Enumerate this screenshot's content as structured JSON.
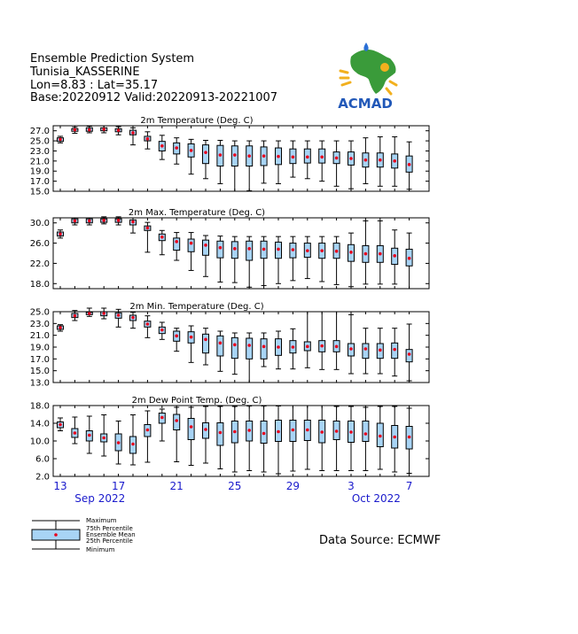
{
  "header": {
    "system": "Ensemble Prediction System",
    "location": "Tunisia_KASSERINE",
    "coords": "Lon=8.83 : Lat=35.17",
    "dates": "Base:20220912 Valid:20220913-20221007"
  },
  "logo": {
    "text": "ACMAD"
  },
  "source": "Data Source: ECMWF",
  "legend": {
    "items": [
      "Maximum",
      "75th Percentile",
      "Ensemble Mean",
      "25th Percentile",
      "Minimum"
    ]
  },
  "xaxis": {
    "day_labels": [
      "13",
      "17",
      "21",
      "25",
      "29",
      "3",
      "7"
    ],
    "day_label_index": [
      0,
      4,
      8,
      12,
      16,
      20,
      24
    ],
    "month_labels": [
      "Sep 2022",
      "Oct 2022"
    ],
    "month_label_index": [
      2,
      21
    ]
  },
  "colors": {
    "box": "#a8d4f5",
    "mean": "#e8001c",
    "tick_text": "#1a1acc",
    "frame": "#000000"
  },
  "chart_data": [
    {
      "type": "box",
      "title": "2m Temperature (Deg. C)",
      "ylim": [
        15,
        28
      ],
      "yticks": [
        "27.0",
        "25.0",
        "23.0",
        "21.0",
        "19.0",
        "17.0",
        "15.0"
      ],
      "ytick_values": [
        27,
        25,
        23,
        21,
        19,
        17,
        15
      ],
      "max": [
        25.9,
        27.7,
        27.9,
        28.0,
        27.8,
        27.6,
        26.8,
        26.1,
        25.6,
        25.3,
        25.1,
        25.1,
        25.0,
        25.0,
        25.0,
        25.0,
        25.0,
        25.0,
        25.0,
        25.0,
        25.0,
        25.6,
        25.8,
        25.8,
        24.8
      ],
      "q75": [
        25.6,
        27.4,
        27.6,
        27.6,
        27.4,
        27.1,
        25.9,
        24.9,
        24.6,
        24.4,
        24.2,
        24.1,
        24.0,
        24.0,
        23.8,
        23.6,
        23.4,
        23.4,
        23.4,
        22.8,
        22.8,
        22.6,
        22.6,
        22.4,
        22.0
      ],
      "mean": [
        25.3,
        27.2,
        27.2,
        27.3,
        27.1,
        26.6,
        25.4,
        24.0,
        23.6,
        23.1,
        22.7,
        22.2,
        22.2,
        22.0,
        22.0,
        21.9,
        21.8,
        21.8,
        21.8,
        21.6,
        21.5,
        21.2,
        21.2,
        21.0,
        20.3
      ],
      "q25": [
        24.9,
        26.9,
        26.9,
        27.0,
        26.8,
        26.2,
        25.0,
        23.0,
        22.4,
        21.8,
        20.5,
        20.0,
        20.0,
        20.0,
        20.1,
        20.3,
        20.5,
        20.6,
        20.6,
        20.5,
        20.2,
        19.8,
        19.8,
        19.6,
        18.8
      ],
      "min": [
        24.6,
        26.5,
        26.6,
        26.6,
        26.2,
        24.2,
        23.4,
        21.3,
        20.4,
        18.4,
        17.5,
        16.5,
        15.0,
        15.1,
        16.6,
        16.5,
        17.8,
        17.5,
        17.0,
        16.0,
        15.5,
        16.5,
        16.0,
        16.0,
        15.4
      ]
    },
    {
      "type": "box",
      "title": "2m Max. Temperature (Deg. C)",
      "ylim": [
        17,
        31
      ],
      "yticks": [
        "30.0",
        "26.0",
        "22.0",
        "18.0"
      ],
      "ytick_values": [
        30,
        26,
        22,
        18
      ],
      "max": [
        28.6,
        31.0,
        31.0,
        31.2,
        31.2,
        31.0,
        30.1,
        28.5,
        28.1,
        28.1,
        27.5,
        27.4,
        27.3,
        27.3,
        27.3,
        27.3,
        27.3,
        27.3,
        27.3,
        27.3,
        28.0,
        30.4,
        30.4,
        28.6,
        28.0
      ],
      "q75": [
        28.2,
        30.8,
        30.8,
        30.8,
        30.8,
        30.6,
        29.4,
        27.8,
        27.0,
        26.8,
        26.6,
        26.4,
        26.3,
        26.4,
        26.4,
        26.2,
        26.0,
        26.0,
        26.0,
        26.0,
        25.7,
        25.5,
        25.5,
        25.0,
        24.8
      ],
      "mean": [
        27.8,
        30.4,
        30.4,
        30.5,
        30.5,
        30.2,
        29.0,
        27.2,
        26.3,
        26.0,
        25.6,
        25.1,
        24.9,
        24.9,
        24.8,
        24.8,
        24.7,
        24.5,
        24.5,
        24.4,
        24.2,
        23.9,
        23.9,
        23.5,
        23.0
      ],
      "q25": [
        27.4,
        30.0,
        30.0,
        30.1,
        30.1,
        29.6,
        28.5,
        26.5,
        24.6,
        24.3,
        23.6,
        23.1,
        23.0,
        22.6,
        23.0,
        23.0,
        23.1,
        23.2,
        23.0,
        23.0,
        22.4,
        22.2,
        22.2,
        21.8,
        21.5
      ],
      "min": [
        27.0,
        29.6,
        29.6,
        29.8,
        29.6,
        28.0,
        24.2,
        23.7,
        22.6,
        20.6,
        19.4,
        18.3,
        18.2,
        17.3,
        17.6,
        18.0,
        18.6,
        19.0,
        18.4,
        17.8,
        17.4,
        17.9,
        17.9,
        17.9,
        17.0
      ]
    },
    {
      "type": "box",
      "title": "2m Min. Temperature (Deg. C)",
      "ylim": [
        13,
        25
      ],
      "yticks": [
        "25.0",
        "23.0",
        "21.0",
        "19.0",
        "17.0",
        "15.0",
        "13.0"
      ],
      "ytick_values": [
        25,
        23,
        21,
        19,
        17,
        15,
        13
      ],
      "max": [
        22.8,
        25.2,
        25.6,
        25.6,
        25.4,
        24.9,
        24.3,
        23.2,
        22.2,
        22.6,
        22.2,
        21.7,
        21.4,
        21.4,
        21.4,
        21.7,
        22.1,
        25.0,
        25.0,
        25.0,
        24.5,
        22.2,
        22.2,
        22.2,
        22.9
      ],
      "q75": [
        22.6,
        24.7,
        24.9,
        25.0,
        24.8,
        24.4,
        23.4,
        22.4,
        21.7,
        21.6,
        21.2,
        20.9,
        20.6,
        20.5,
        20.4,
        20.4,
        20.1,
        19.9,
        20.1,
        20.1,
        19.6,
        19.6,
        19.6,
        19.7,
        18.6
      ],
      "mean": [
        22.3,
        24.3,
        24.7,
        24.7,
        24.4,
        24.0,
        22.9,
        21.9,
        20.9,
        20.7,
        20.3,
        19.7,
        19.4,
        19.3,
        19.1,
        19.0,
        19.0,
        19.1,
        19.2,
        19.1,
        18.7,
        18.7,
        18.5,
        18.6,
        17.8
      ],
      "q25": [
        22.0,
        24.0,
        24.5,
        24.3,
        23.9,
        23.5,
        22.4,
        21.3,
        20.0,
        19.7,
        18.0,
        17.5,
        17.1,
        17.0,
        17.0,
        17.6,
        18.0,
        18.4,
        18.2,
        18.2,
        17.5,
        17.1,
        17.1,
        17.1,
        16.5
      ],
      "min": [
        21.7,
        23.5,
        24.2,
        23.8,
        22.4,
        22.2,
        20.6,
        20.3,
        18.3,
        16.4,
        16.0,
        14.9,
        14.4,
        13.0,
        15.7,
        15.3,
        15.3,
        15.5,
        15.2,
        15.2,
        14.5,
        14.5,
        14.5,
        14.1,
        13.3
      ]
    },
    {
      "type": "box",
      "title": "2m Dew Point Temp. (Deg. C)",
      "ylim": [
        2,
        18
      ],
      "yticks": [
        "18.0",
        "14.0",
        "10.0",
        "6.0",
        "2.0"
      ],
      "ytick_values": [
        18,
        14,
        10,
        6,
        2
      ],
      "max": [
        15.2,
        15.4,
        15.6,
        15.9,
        14.5,
        15.9,
        16.8,
        17.2,
        17.6,
        17.6,
        17.8,
        17.8,
        17.8,
        17.9,
        17.9,
        17.9,
        18.0,
        18.0,
        18.0,
        17.8,
        17.8,
        17.6,
        17.8,
        17.8,
        17.4
      ],
      "q75": [
        14.3,
        12.8,
        12.3,
        11.6,
        11.6,
        11.0,
        13.7,
        16.3,
        16.0,
        15.1,
        14.1,
        14.1,
        14.5,
        14.5,
        14.5,
        14.7,
        14.7,
        14.7,
        14.7,
        14.5,
        14.5,
        14.5,
        14.0,
        13.5,
        13.3
      ],
      "mean": [
        13.7,
        11.8,
        11.3,
        10.7,
        9.6,
        9.3,
        12.5,
        15.3,
        14.6,
        13.2,
        12.6,
        11.9,
        12.1,
        12.4,
        11.7,
        12.1,
        12.5,
        12.5,
        12.0,
        12.2,
        12.0,
        11.6,
        11.1,
        10.9,
        10.9
      ],
      "q25": [
        13.0,
        10.8,
        10.0,
        9.8,
        7.8,
        7.2,
        11.0,
        14.0,
        12.5,
        10.3,
        10.6,
        9.0,
        9.6,
        10.0,
        9.5,
        9.9,
        9.9,
        10.1,
        9.6,
        10.3,
        9.7,
        9.9,
        8.7,
        8.4,
        8.2
      ],
      "min": [
        12.3,
        9.4,
        7.2,
        6.6,
        4.8,
        4.6,
        5.2,
        10.0,
        5.3,
        4.5,
        5.0,
        3.7,
        3.0,
        3.3,
        3.0,
        2.6,
        3.2,
        3.6,
        3.3,
        3.3,
        3.3,
        3.3,
        3.6,
        3.0,
        2.7
      ]
    }
  ]
}
